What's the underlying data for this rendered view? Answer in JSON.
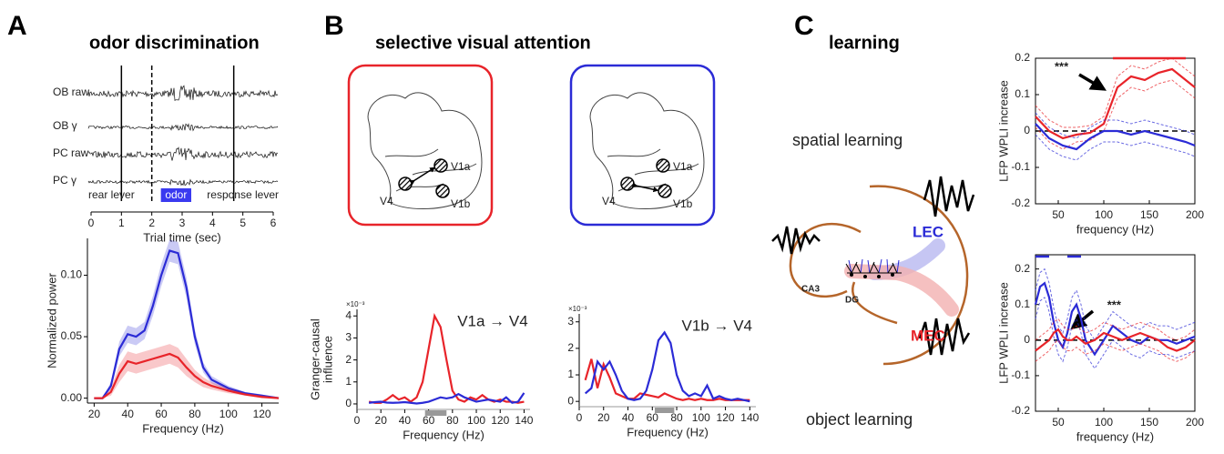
{
  "panels": [
    {
      "label": "A",
      "title": "odor discrimination"
    },
    {
      "label": "B",
      "title": "selective visual attention"
    },
    {
      "label": "C",
      "title": "learning"
    }
  ],
  "brains": [
    {
      "color": "#e8242a",
      "labels": [
        "V1a",
        "V4",
        "V1b"
      ]
    },
    {
      "color": "#2b2bd6",
      "labels": [
        "V1a",
        "V4",
        "V1b"
      ]
    }
  ],
  "hippocampus": {
    "spatial": "spatial learning",
    "object": "object learning",
    "lec": "LEC",
    "mec": "MEC",
    "ca3": "CA3",
    "dg": "DG"
  },
  "chart_data": [
    {
      "type": "trace",
      "xlabel": "Trial time (sec)",
      "xlim": [
        0,
        6
      ],
      "xticks": [
        0,
        1,
        2,
        3,
        4,
        5,
        6
      ],
      "trace_labels": [
        "OB raw",
        "OB γ",
        "PC raw",
        "PC γ"
      ],
      "events": [
        {
          "x": 1
        },
        {
          "x": 2,
          "dashed": true
        },
        {
          "x": 4.7
        }
      ],
      "period": {
        "label": "odor",
        "x": [
          2.3,
          3.3
        ],
        "color": "#3a3af0"
      },
      "event_labels": [
        "rear lever",
        "response lever"
      ]
    },
    {
      "type": "line",
      "xlabel": "Frequency (Hz)",
      "ylabel": [
        "Normalized power"
      ],
      "xlim": [
        16,
        130
      ],
      "xticks": [
        20,
        40,
        60,
        80,
        100,
        120
      ],
      "ylim": [
        -0.004,
        0.13
      ],
      "yticks": [
        {
          "value": 0,
          "label": "0.00"
        },
        0.05,
        {
          "value": 0.1,
          "label": "0.10"
        }
      ],
      "x": [
        20,
        25,
        30,
        35,
        40,
        45,
        50,
        55,
        60,
        65,
        70,
        75,
        80,
        85,
        90,
        100,
        110,
        120,
        130
      ],
      "series": [
        {
          "name": "blue",
          "color": "#2b2bd6",
          "values": [
            0,
            0,
            0.01,
            0.04,
            0.052,
            0.05,
            0.055,
            0.075,
            0.1,
            0.12,
            0.118,
            0.09,
            0.05,
            0.025,
            0.015,
            0.008,
            0.004,
            0.002,
            0
          ],
          "error": [
            0,
            0,
            0.003,
            0.006,
            0.007,
            0.007,
            0.007,
            0.008,
            0.009,
            0.009,
            0.009,
            0.008,
            0.006,
            0.004,
            0.003,
            0.002,
            0.001,
            0.001,
            0
          ]
        },
        {
          "name": "red",
          "color": "#e8242a",
          "values": [
            0,
            0,
            0.005,
            0.02,
            0.03,
            0.028,
            0.03,
            0.032,
            0.034,
            0.036,
            0.033,
            0.025,
            0.018,
            0.013,
            0.01,
            0.006,
            0.003,
            0.001,
            0
          ],
          "error": [
            0,
            0,
            0.003,
            0.007,
            0.008,
            0.008,
            0.008,
            0.008,
            0.008,
            0.008,
            0.008,
            0.007,
            0.005,
            0.004,
            0.003,
            0.002,
            0.001,
            0.001,
            0
          ]
        }
      ]
    },
    {
      "type": "line",
      "xlabel": "Frequency (Hz)",
      "ylabel": [
        "Granger-causal",
        "influence"
      ],
      "exponent": "×10⁻³",
      "annotation": "V1a → V4",
      "xlim": [
        0,
        145
      ],
      "xticks": [
        0,
        20,
        40,
        60,
        80,
        100,
        120,
        140
      ],
      "ylim": [
        -0.25,
        4.3
      ],
      "yticks": [
        0,
        1,
        2,
        3,
        4
      ],
      "bar_x": [
        57,
        75
      ],
      "bar_color": "#999999",
      "x": [
        10,
        15,
        20,
        25,
        30,
        35,
        40,
        45,
        50,
        55,
        60,
        65,
        70,
        75,
        80,
        85,
        90,
        95,
        100,
        105,
        110,
        115,
        120,
        125,
        130,
        135,
        140
      ],
      "series": [
        {
          "name": "red",
          "color": "#e8242a",
          "values": [
            0.1,
            0.05,
            0.05,
            0.2,
            0.4,
            0.2,
            0.3,
            0.1,
            0.3,
            1.0,
            2.5,
            4.0,
            3.5,
            2.0,
            0.6,
            0.2,
            0.1,
            0.3,
            0.2,
            0.4,
            0.2,
            0.1,
            0.2,
            0.1,
            0.1,
            0.05,
            0.1
          ]
        },
        {
          "name": "blue",
          "color": "#2b2bd6",
          "values": [
            0.05,
            0.08,
            0.1,
            0.06,
            0.05,
            0.06,
            0.08,
            0.05,
            0.02,
            0.05,
            0.1,
            0.2,
            0.3,
            0.25,
            0.3,
            0.45,
            0.3,
            0.2,
            0.1,
            0.15,
            0.2,
            0.15,
            0.1,
            0.3,
            0.05,
            0.1,
            0.5
          ]
        }
      ]
    },
    {
      "type": "line",
      "xlabel": "Frequency (Hz)",
      "exponent": "×10⁻³",
      "annotation": "V1b → V4",
      "xlim": [
        0,
        145
      ],
      "xticks": [
        0,
        20,
        40,
        60,
        80,
        100,
        120,
        140
      ],
      "ylim": [
        -0.2,
        3.3
      ],
      "yticks": [
        0,
        1,
        2,
        3
      ],
      "bar_x": [
        62,
        78
      ],
      "bar_color": "#999999",
      "x": [
        5,
        10,
        15,
        20,
        25,
        30,
        35,
        40,
        45,
        50,
        55,
        60,
        65,
        70,
        75,
        80,
        85,
        90,
        95,
        100,
        105,
        110,
        115,
        120,
        125,
        130,
        135,
        140
      ],
      "series": [
        {
          "name": "red",
          "color": "#e8242a",
          "values": [
            0.8,
            1.6,
            0.5,
            1.4,
            0.9,
            0.3,
            0.2,
            0.1,
            0.1,
            0.3,
            0.25,
            0.2,
            0.15,
            0.3,
            0.2,
            0.1,
            0.05,
            0.1,
            0.05,
            0.1,
            0.05,
            0.05,
            0.1,
            0.05,
            0.05,
            0.05,
            0.05,
            0.05
          ]
        },
        {
          "name": "blue",
          "color": "#2b2bd6",
          "values": [
            0.3,
            0.5,
            1.5,
            1.2,
            1.5,
            1.0,
            0.4,
            0.1,
            0.05,
            0.1,
            0.4,
            1.2,
            2.3,
            2.6,
            2.2,
            1.0,
            0.4,
            0.2,
            0.3,
            0.2,
            0.6,
            0.1,
            0.2,
            0.1,
            0.05,
            0.1,
            0.05,
            0
          ]
        }
      ]
    },
    {
      "type": "line",
      "xlabel": "frequency (Hz)",
      "ylabel": [
        "LFP WPLI increase"
      ],
      "annotation": "***",
      "zero_line": true,
      "xlim": [
        25,
        200
      ],
      "xticks": [
        50,
        100,
        150,
        200
      ],
      "ylim": [
        -0.2,
        0.2
      ],
      "yticks": [
        -0.2,
        -0.1,
        0,
        0.1,
        0.2
      ],
      "sig_bars": [
        {
          "x": [
            110,
            190
          ],
          "y": 0.2,
          "color": "#e8242a"
        }
      ],
      "x": [
        25,
        40,
        55,
        70,
        85,
        100,
        115,
        130,
        145,
        160,
        175,
        190,
        200
      ],
      "series": [
        {
          "name": "red",
          "color": "#e8242a",
          "values": [
            0.04,
            0,
            -0.02,
            -0.01,
            -0.005,
            0.02,
            0.12,
            0.15,
            0.14,
            0.16,
            0.17,
            0.14,
            0.12
          ],
          "error": [
            0.03,
            0.03,
            0.03,
            0.02,
            0.02,
            0.02,
            0.03,
            0.03,
            0.03,
            0.03,
            0.03,
            0.03,
            0.03
          ]
        },
        {
          "name": "blue",
          "color": "#2b2bd6",
          "values": [
            0.02,
            -0.02,
            -0.04,
            -0.05,
            -0.02,
            0,
            0,
            -0.01,
            0,
            -0.01,
            -0.02,
            -0.03,
            -0.04
          ],
          "error": [
            0.03,
            0.03,
            0.03,
            0.03,
            0.03,
            0.03,
            0.03,
            0.03,
            0.03,
            0.03,
            0.03,
            0.03,
            0.03
          ]
        }
      ]
    },
    {
      "type": "line",
      "xlabel": "frequency (Hz)",
      "ylabel": [
        "LFP WPLI increase"
      ],
      "annotation": "***",
      "zero_line": true,
      "xlim": [
        25,
        200
      ],
      "xticks": [
        50,
        100,
        150,
        200
      ],
      "ylim": [
        -0.2,
        0.24
      ],
      "yticks": [
        -0.2,
        -0.1,
        0,
        0.1,
        0.2
      ],
      "sig_bars": [
        {
          "x": [
            25,
            40
          ],
          "y": 0.235,
          "color": "#2b2bd6"
        },
        {
          "x": [
            60,
            75
          ],
          "y": 0.235,
          "color": "#2b2bd6"
        }
      ],
      "x": [
        25,
        30,
        35,
        40,
        45,
        50,
        55,
        60,
        65,
        70,
        75,
        80,
        90,
        100,
        110,
        120,
        130,
        140,
        150,
        160,
        170,
        180,
        190,
        200
      ],
      "series": [
        {
          "name": "blue",
          "color": "#2b2bd6",
          "values": [
            0.1,
            0.15,
            0.16,
            0.12,
            0.05,
            0,
            -0.02,
            0.02,
            0.08,
            0.1,
            0.06,
            0,
            -0.04,
            0,
            0.04,
            0.02,
            0,
            -0.01,
            0.01,
            0,
            0,
            -0.01,
            0,
            0.01
          ],
          "error": [
            0.04,
            0.04,
            0.04,
            0.04,
            0.04,
            0.04,
            0.04,
            0.04,
            0.04,
            0.04,
            0.04,
            0.04,
            0.04,
            0.04,
            0.04,
            0.04,
            0.04,
            0.04,
            0.04,
            0.04,
            0.04,
            0.04,
            0.04,
            0.04
          ]
        },
        {
          "name": "red",
          "color": "#e8242a",
          "values": [
            -0.03,
            -0.02,
            -0.01,
            0,
            0.02,
            0.03,
            0.01,
            0,
            0,
            0.01,
            0,
            -0.01,
            0,
            0.02,
            0.01,
            0,
            0.01,
            0.02,
            0.01,
            0,
            -0.02,
            -0.03,
            -0.02,
            0
          ],
          "error": [
            0.03,
            0.03,
            0.03,
            0.03,
            0.03,
            0.03,
            0.03,
            0.03,
            0.03,
            0.03,
            0.03,
            0.03,
            0.03,
            0.03,
            0.03,
            0.03,
            0.03,
            0.03,
            0.03,
            0.03,
            0.03,
            0.03,
            0.03,
            0.03
          ]
        }
      ]
    }
  ]
}
